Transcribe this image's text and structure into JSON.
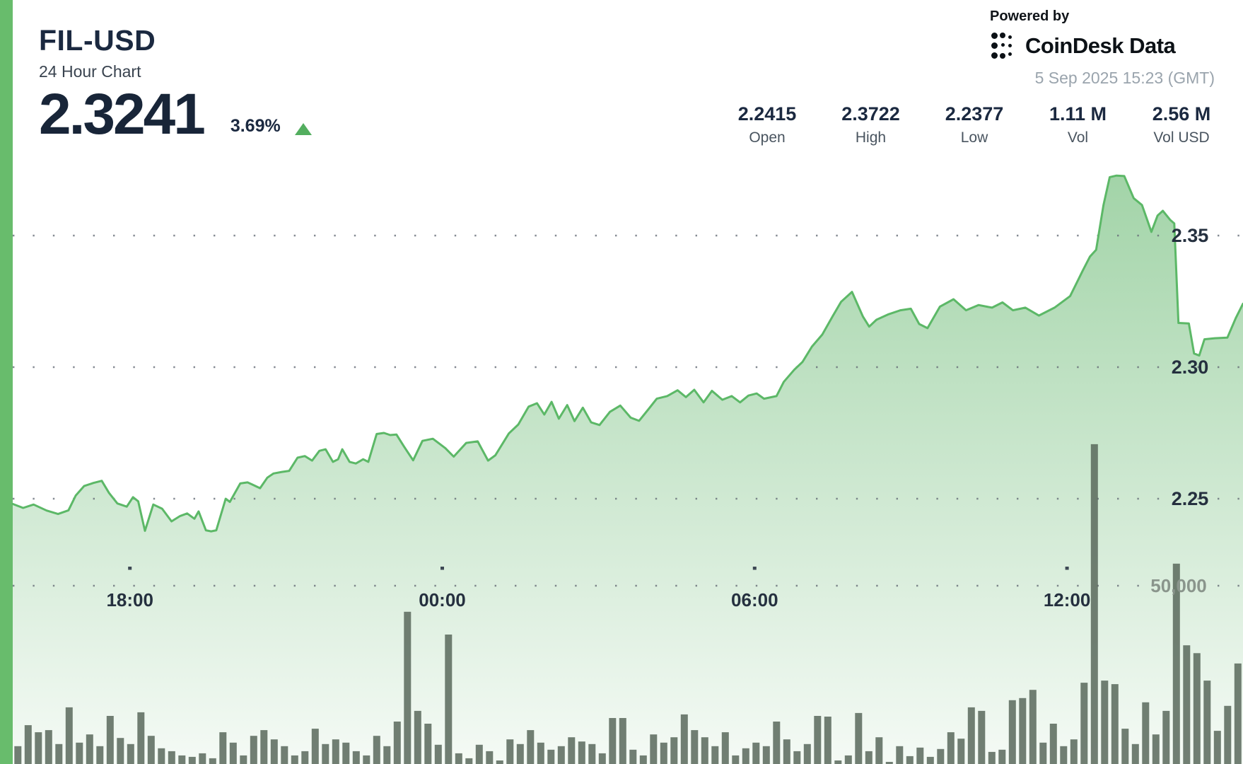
{
  "header": {
    "symbol": "FIL-USD",
    "timeframe": "24 Hour Chart",
    "price": "2.3241",
    "change_pct": "3.69%",
    "trend": "up"
  },
  "powered_by": {
    "label": "Powered by",
    "brand": "CoinDesk Data",
    "timestamp": "5 Sep 2025 15:23 (GMT)"
  },
  "stats": [
    {
      "value": "2.2415",
      "label": "Open"
    },
    {
      "value": "2.3722",
      "label": "High"
    },
    {
      "value": "2.2377",
      "label": "Low"
    },
    {
      "value": "1.11 M",
      "label": "Vol"
    },
    {
      "value": "2.56 M",
      "label": "Vol USD"
    }
  ],
  "colors": {
    "accent_green": "#68bc6c",
    "line_green": "#5cb867",
    "area_green_top": "rgba(124,194,132,0.72)",
    "area_green_bottom": "rgba(124,194,132,0.08)",
    "volume_bar": "#59695c",
    "up_triangle": "#53ae5f",
    "dark_navy_text": "#1b2940",
    "gray_label": "#49545f",
    "timestamp_gray": "#9aa4ad"
  },
  "chart_data": {
    "type": "area",
    "title": "FIL-USD 24 Hour Chart",
    "legend": "none",
    "grid": "dotted-horizontal",
    "x_axis": {
      "unit": "hour-of-day (continuous, 24h window ending 15:23)",
      "range": [
        15.75,
        39.38
      ],
      "ticks": [
        {
          "t": 18,
          "label": "18:00"
        },
        {
          "t": 24,
          "label": "00:00"
        },
        {
          "t": 30,
          "label": "06:00"
        },
        {
          "t": 36,
          "label": "12:00"
        }
      ]
    },
    "price_axis": {
      "side": "right",
      "range": [
        2.23,
        2.38
      ],
      "gridlines": [
        {
          "p": 2.35,
          "label": "2.35"
        },
        {
          "p": 2.3,
          "label": "2.30"
        },
        {
          "p": 2.25,
          "label": "2.25"
        }
      ]
    },
    "volume_axis": {
      "gridline": {
        "v": 50000,
        "label": "50,000"
      }
    },
    "price_series": [
      [
        15.75,
        2.248
      ],
      [
        15.95,
        2.2465
      ],
      [
        16.15,
        2.2478
      ],
      [
        16.4,
        2.2455
      ],
      [
        16.62,
        2.2442
      ],
      [
        16.82,
        2.2456
      ],
      [
        16.96,
        2.2512
      ],
      [
        17.12,
        2.2548
      ],
      [
        17.3,
        2.256
      ],
      [
        17.46,
        2.2568
      ],
      [
        17.6,
        2.2522
      ],
      [
        17.76,
        2.2482
      ],
      [
        17.94,
        2.247
      ],
      [
        18.06,
        2.2506
      ],
      [
        18.16,
        2.249
      ],
      [
        18.29,
        2.2378
      ],
      [
        18.45,
        2.2478
      ],
      [
        18.62,
        2.2462
      ],
      [
        18.8,
        2.2414
      ],
      [
        18.96,
        2.2434
      ],
      [
        19.1,
        2.2444
      ],
      [
        19.24,
        2.2424
      ],
      [
        19.32,
        2.2452
      ],
      [
        19.46,
        2.238
      ],
      [
        19.56,
        2.2376
      ],
      [
        19.66,
        2.238
      ],
      [
        19.84,
        2.25
      ],
      [
        19.92,
        2.2488
      ],
      [
        20.12,
        2.2558
      ],
      [
        20.26,
        2.2562
      ],
      [
        20.36,
        2.2553
      ],
      [
        20.5,
        2.254
      ],
      [
        20.64,
        2.258
      ],
      [
        20.76,
        2.2596
      ],
      [
        20.92,
        2.2602
      ],
      [
        21.06,
        2.2606
      ],
      [
        21.22,
        2.2656
      ],
      [
        21.36,
        2.2662
      ],
      [
        21.5,
        2.2645
      ],
      [
        21.64,
        2.2682
      ],
      [
        21.76,
        2.2688
      ],
      [
        21.9,
        2.264
      ],
      [
        22.0,
        2.265
      ],
      [
        22.08,
        2.2688
      ],
      [
        22.22,
        2.264
      ],
      [
        22.34,
        2.2634
      ],
      [
        22.48,
        2.265
      ],
      [
        22.58,
        2.264
      ],
      [
        22.74,
        2.2746
      ],
      [
        22.88,
        2.275
      ],
      [
        23.0,
        2.2742
      ],
      [
        23.12,
        2.2744
      ],
      [
        23.26,
        2.27
      ],
      [
        23.44,
        2.2646
      ],
      [
        23.62,
        2.272
      ],
      [
        23.82,
        2.2728
      ],
      [
        24.06,
        2.2692
      ],
      [
        24.22,
        2.266
      ],
      [
        24.46,
        2.2712
      ],
      [
        24.68,
        2.2718
      ],
      [
        24.88,
        2.2645
      ],
      [
        25.02,
        2.2665
      ],
      [
        25.28,
        2.2748
      ],
      [
        25.46,
        2.2782
      ],
      [
        25.66,
        2.285
      ],
      [
        25.82,
        2.2863
      ],
      [
        25.96,
        2.282
      ],
      [
        26.1,
        2.2868
      ],
      [
        26.24,
        2.2804
      ],
      [
        26.4,
        2.2856
      ],
      [
        26.54,
        2.2795
      ],
      [
        26.7,
        2.2846
      ],
      [
        26.86,
        2.279
      ],
      [
        27.02,
        2.278
      ],
      [
        27.22,
        2.283
      ],
      [
        27.42,
        2.2854
      ],
      [
        27.62,
        2.2808
      ],
      [
        27.78,
        2.2796
      ],
      [
        27.96,
        2.284
      ],
      [
        28.12,
        2.288
      ],
      [
        28.32,
        2.289
      ],
      [
        28.52,
        2.2912
      ],
      [
        28.68,
        2.2886
      ],
      [
        28.84,
        2.2914
      ],
      [
        29.02,
        2.2866
      ],
      [
        29.18,
        2.291
      ],
      [
        29.38,
        2.2876
      ],
      [
        29.56,
        2.289
      ],
      [
        29.72,
        2.2866
      ],
      [
        29.88,
        2.2892
      ],
      [
        30.04,
        2.29
      ],
      [
        30.18,
        2.288
      ],
      [
        30.42,
        2.289
      ],
      [
        30.56,
        2.2944
      ],
      [
        30.76,
        2.299
      ],
      [
        30.92,
        2.302
      ],
      [
        31.1,
        2.3078
      ],
      [
        31.3,
        2.3124
      ],
      [
        31.5,
        2.3194
      ],
      [
        31.66,
        2.3248
      ],
      [
        31.87,
        2.3286
      ],
      [
        32.08,
        2.3192
      ],
      [
        32.2,
        2.3154
      ],
      [
        32.34,
        2.318
      ],
      [
        32.56,
        2.32
      ],
      [
        32.8,
        2.3216
      ],
      [
        33.0,
        2.3222
      ],
      [
        33.16,
        2.3164
      ],
      [
        33.32,
        2.3148
      ],
      [
        33.56,
        2.323
      ],
      [
        33.82,
        2.3258
      ],
      [
        34.06,
        2.3216
      ],
      [
        34.3,
        2.3236
      ],
      [
        34.56,
        2.3226
      ],
      [
        34.76,
        2.3246
      ],
      [
        34.96,
        2.3216
      ],
      [
        35.2,
        2.3226
      ],
      [
        35.46,
        2.3196
      ],
      [
        35.76,
        2.3226
      ],
      [
        36.06,
        2.327
      ],
      [
        36.3,
        2.3366
      ],
      [
        36.44,
        2.342
      ],
      [
        36.56,
        2.3446
      ],
      [
        36.7,
        2.3616
      ],
      [
        36.82,
        2.3722
      ],
      [
        36.95,
        2.3728
      ],
      [
        37.1,
        2.3726
      ],
      [
        37.28,
        2.3642
      ],
      [
        37.44,
        2.3616
      ],
      [
        37.54,
        2.356
      ],
      [
        37.62,
        2.3514
      ],
      [
        37.74,
        2.3576
      ],
      [
        37.84,
        2.3594
      ],
      [
        37.98,
        2.356
      ],
      [
        38.06,
        2.3546
      ],
      [
        38.14,
        2.3168
      ],
      [
        38.34,
        2.3166
      ],
      [
        38.44,
        2.3052
      ],
      [
        38.54,
        2.3044
      ],
      [
        38.64,
        2.3106
      ],
      [
        38.84,
        2.311
      ],
      [
        39.08,
        2.3112
      ],
      [
        39.24,
        2.3186
      ],
      [
        39.38,
        2.3241
      ]
    ],
    "volume_series": [
      5000,
      10900,
      8900,
      9500,
      5600,
      15900,
      6000,
      8300,
      5000,
      13500,
      7300,
      5600,
      14500,
      7900,
      4400,
      3600,
      2400,
      2000,
      3000,
      1600,
      8900,
      6000,
      2400,
      7900,
      9500,
      6900,
      5000,
      2400,
      3600,
      9900,
      5600,
      6900,
      6000,
      3600,
      2400,
      7900,
      5000,
      11900,
      42700,
      14900,
      11300,
      5400,
      36300,
      3000,
      1600,
      5400,
      3600,
      1000,
      6900,
      5600,
      9500,
      6000,
      4000,
      5000,
      7500,
      6300,
      5600,
      3000,
      12900,
      12900,
      4000,
      2400,
      8300,
      6000,
      7500,
      13900,
      9500,
      7500,
      5000,
      8900,
      2400,
      4400,
      6000,
      5000,
      11900,
      6900,
      3600,
      5600,
      13500,
      13300,
      1000,
      2400,
      14300,
      3600,
      7500,
      600,
      5000,
      2200,
      4600,
      2000,
      4200,
      8900,
      7100,
      15900,
      14900,
      3400,
      4000,
      17900,
      18500,
      20800,
      6000,
      11300,
      5000,
      6900,
      22800,
      89700,
      23400,
      22400,
      9900,
      5600,
      17300,
      8300,
      14900,
      56200,
      33300,
      31100,
      23400,
      9300,
      16300,
      28200
    ]
  }
}
